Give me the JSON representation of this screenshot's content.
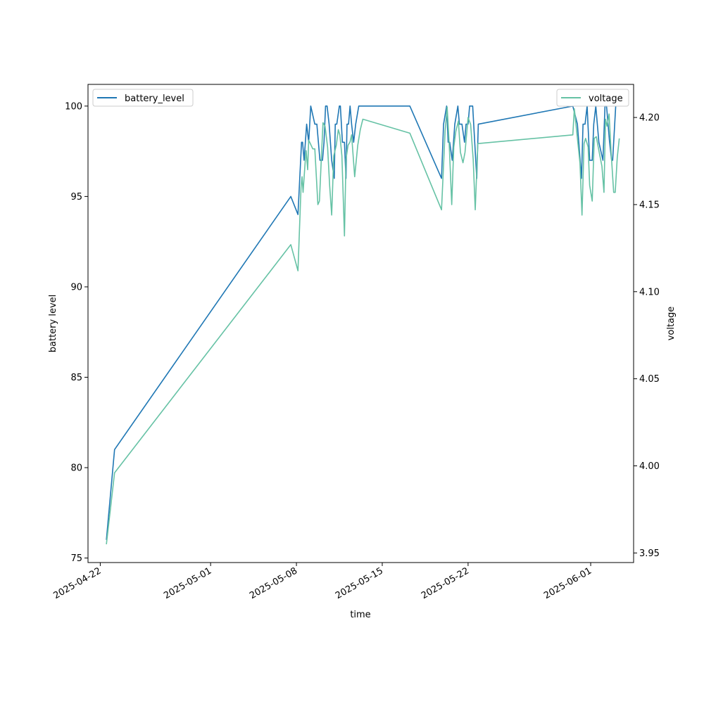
{
  "chart_data": {
    "type": "line",
    "xlabel": "time",
    "ylabel_left": "battery level",
    "ylabel_right": "voltage",
    "xlim": [
      "2025-04-21T00:00",
      "2025-06-04T12:00"
    ],
    "ylim_left": [
      74.75,
      101.2
    ],
    "ylim_right": [
      3.9445,
      4.219
    ],
    "x_ticks": [
      "2025-04-22",
      "2025-05-01",
      "2025-05-08",
      "2025-05-15",
      "2025-05-22",
      "2025-06-01"
    ],
    "y_ticks_left": [
      75,
      80,
      85,
      90,
      95,
      100
    ],
    "y_ticks_right": [
      3.95,
      4.0,
      4.05,
      4.1,
      4.15,
      4.2
    ],
    "legend_left": {
      "label": "battery_level",
      "location": "top-left"
    },
    "legend_right": {
      "label": "voltage",
      "location": "top-right"
    },
    "series": [
      {
        "name": "battery_level",
        "axis": "left",
        "color": "#1f77b4",
        "points": [
          [
            "2025-04-22T12:00",
            76
          ],
          [
            "2025-04-23T04:00",
            81
          ],
          [
            "2025-05-07T13:00",
            95
          ],
          [
            "2025-05-08T03:00",
            94
          ],
          [
            "2025-05-08T10:00",
            98
          ],
          [
            "2025-05-08T12:00",
            98
          ],
          [
            "2025-05-08T15:00",
            97
          ],
          [
            "2025-05-08T20:00",
            99
          ],
          [
            "2025-05-09T00:00",
            98
          ],
          [
            "2025-05-09T04:00",
            100
          ],
          [
            "2025-05-09T12:00",
            99
          ],
          [
            "2025-05-09T16:00",
            99
          ],
          [
            "2025-05-09T22:00",
            97
          ],
          [
            "2025-05-10T03:00",
            97
          ],
          [
            "2025-05-10T06:00",
            98
          ],
          [
            "2025-05-10T09:00",
            100
          ],
          [
            "2025-05-10T12:00",
            100
          ],
          [
            "2025-05-10T16:00",
            99
          ],
          [
            "2025-05-10T21:00",
            97
          ],
          [
            "2025-05-11T02:00",
            96
          ],
          [
            "2025-05-11T04:00",
            99
          ],
          [
            "2025-05-11T07:00",
            99
          ],
          [
            "2025-05-11T12:00",
            100
          ],
          [
            "2025-05-11T14:00",
            100
          ],
          [
            "2025-05-11T18:00",
            98
          ],
          [
            "2025-05-11T22:00",
            98
          ],
          [
            "2025-05-12T01:00",
            96
          ],
          [
            "2025-05-12T03:00",
            99
          ],
          [
            "2025-05-12T06:00",
            99
          ],
          [
            "2025-05-12T09:00",
            100
          ],
          [
            "2025-05-12T12:00",
            99
          ],
          [
            "2025-05-12T16:00",
            98
          ],
          [
            "2025-05-12T20:00",
            99
          ],
          [
            "2025-05-13T02:00",
            100
          ],
          [
            "2025-05-17T06:00",
            100
          ],
          [
            "2025-05-19T20:00",
            96
          ],
          [
            "2025-05-20T00:00",
            99
          ],
          [
            "2025-05-20T06:00",
            100
          ],
          [
            "2025-05-20T09:00",
            98
          ],
          [
            "2025-05-20T12:00",
            98
          ],
          [
            "2025-05-20T17:00",
            97
          ],
          [
            "2025-05-20T22:00",
            99
          ],
          [
            "2025-05-21T04:00",
            100
          ],
          [
            "2025-05-21T07:00",
            99
          ],
          [
            "2025-05-21T12:00",
            99
          ],
          [
            "2025-05-21T17:00",
            98
          ],
          [
            "2025-05-21T20:00",
            99
          ],
          [
            "2025-05-22T00:00",
            99
          ],
          [
            "2025-05-22T03:00",
            100
          ],
          [
            "2025-05-22T09:00",
            100
          ],
          [
            "2025-05-22T13:00",
            98
          ],
          [
            "2025-05-22T17:00",
            96
          ],
          [
            "2025-05-22T20:00",
            99
          ],
          [
            "2025-05-30T13:00",
            100
          ],
          [
            "2025-05-30T22:00",
            99
          ],
          [
            "2025-05-31T06:00",
            96
          ],
          [
            "2025-05-31T09:00",
            99
          ],
          [
            "2025-05-31T13:00",
            99
          ],
          [
            "2025-05-31T17:00",
            100
          ],
          [
            "2025-05-31T22:00",
            97
          ],
          [
            "2025-06-01T03:00",
            97
          ],
          [
            "2025-06-01T06:00",
            99
          ],
          [
            "2025-06-01T10:00",
            100
          ],
          [
            "2025-06-01T16:00",
            98
          ],
          [
            "2025-06-02T00:00",
            97
          ],
          [
            "2025-06-02T04:00",
            100
          ],
          [
            "2025-06-02T07:00",
            100
          ],
          [
            "2025-06-02T13:00",
            98
          ],
          [
            "2025-06-02T17:00",
            97
          ],
          [
            "2025-06-02T19:00",
            97
          ],
          [
            "2025-06-03T01:00",
            100
          ]
        ]
      },
      {
        "name": "voltage",
        "axis": "right",
        "color": "#66c2a5",
        "points": [
          [
            "2025-04-22T12:00",
            3.955
          ],
          [
            "2025-04-23T04:00",
            3.996
          ],
          [
            "2025-05-07T13:00",
            4.127
          ],
          [
            "2025-05-08T03:00",
            4.112
          ],
          [
            "2025-05-08T09:00",
            4.16
          ],
          [
            "2025-05-08T11:00",
            4.166
          ],
          [
            "2025-05-08T13:00",
            4.157
          ],
          [
            "2025-05-08T17:00",
            4.174
          ],
          [
            "2025-05-08T19:00",
            4.181
          ],
          [
            "2025-05-08T22:00",
            4.17
          ],
          [
            "2025-05-09T00:00",
            4.187
          ],
          [
            "2025-05-09T08:00",
            4.182
          ],
          [
            "2025-05-09T12:00",
            4.182
          ],
          [
            "2025-05-09T18:00",
            4.15
          ],
          [
            "2025-05-09T21:00",
            4.152
          ],
          [
            "2025-05-10T01:00",
            4.178
          ],
          [
            "2025-05-10T04:00",
            4.197
          ],
          [
            "2025-05-10T08:00",
            4.195
          ],
          [
            "2025-05-10T13:00",
            4.183
          ],
          [
            "2025-05-10T17:00",
            4.161
          ],
          [
            "2025-05-10T21:00",
            4.144
          ],
          [
            "2025-05-11T01:00",
            4.178
          ],
          [
            "2025-05-11T06:00",
            4.184
          ],
          [
            "2025-05-11T10:00",
            4.193
          ],
          [
            "2025-05-11T13:00",
            4.19
          ],
          [
            "2025-05-11T17:00",
            4.178
          ],
          [
            "2025-05-11T22:00",
            4.132
          ],
          [
            "2025-05-12T01:00",
            4.176
          ],
          [
            "2025-05-12T05:00",
            4.184
          ],
          [
            "2025-05-12T09:00",
            4.186
          ],
          [
            "2025-05-12T12:00",
            4.19
          ],
          [
            "2025-05-12T15:00",
            4.178
          ],
          [
            "2025-05-12T18:00",
            4.166
          ],
          [
            "2025-05-13T00:00",
            4.184
          ],
          [
            "2025-05-13T05:00",
            4.193
          ],
          [
            "2025-05-13T10:00",
            4.199
          ],
          [
            "2025-05-17T06:00",
            4.191
          ],
          [
            "2025-05-19T20:00",
            4.147
          ],
          [
            "2025-05-20T03:00",
            4.192
          ],
          [
            "2025-05-20T07:00",
            4.206
          ],
          [
            "2025-05-20T11:00",
            4.185
          ],
          [
            "2025-05-20T16:00",
            4.15
          ],
          [
            "2025-05-20T20:00",
            4.183
          ],
          [
            "2025-05-21T00:00",
            4.192
          ],
          [
            "2025-05-21T05:00",
            4.198
          ],
          [
            "2025-05-21T09:00",
            4.18
          ],
          [
            "2025-05-21T14:00",
            4.174
          ],
          [
            "2025-05-21T18:00",
            4.18
          ],
          [
            "2025-05-22T00:00",
            4.2
          ],
          [
            "2025-05-22T05:00",
            4.196
          ],
          [
            "2025-05-22T10:00",
            4.176
          ],
          [
            "2025-05-22T14:00",
            4.147
          ],
          [
            "2025-05-22T19:00",
            4.185
          ],
          [
            "2025-05-30T13:00",
            4.19
          ],
          [
            "2025-05-30T16:00",
            4.205
          ],
          [
            "2025-05-30T22:00",
            4.188
          ],
          [
            "2025-05-31T03:00",
            4.174
          ],
          [
            "2025-05-31T07:00",
            4.144
          ],
          [
            "2025-05-31T11:00",
            4.185
          ],
          [
            "2025-05-31T14:00",
            4.188
          ],
          [
            "2025-05-31T19:00",
            4.183
          ],
          [
            "2025-05-31T22:00",
            4.161
          ],
          [
            "2025-06-01T03:00",
            4.152
          ],
          [
            "2025-06-01T07:00",
            4.188
          ],
          [
            "2025-06-01T11:00",
            4.189
          ],
          [
            "2025-06-01T16:00",
            4.181
          ],
          [
            "2025-06-01T22:00",
            4.172
          ],
          [
            "2025-06-02T02:00",
            4.157
          ],
          [
            "2025-06-02T05:00",
            4.199
          ],
          [
            "2025-06-02T08:00",
            4.195
          ],
          [
            "2025-06-02T12:00",
            4.202
          ],
          [
            "2025-06-02T16:00",
            4.18
          ],
          [
            "2025-06-02T21:00",
            4.157
          ],
          [
            "2025-06-03T00:00",
            4.157
          ],
          [
            "2025-06-03T04:00",
            4.177
          ],
          [
            "2025-06-03T08:00",
            4.188
          ]
        ]
      }
    ]
  }
}
